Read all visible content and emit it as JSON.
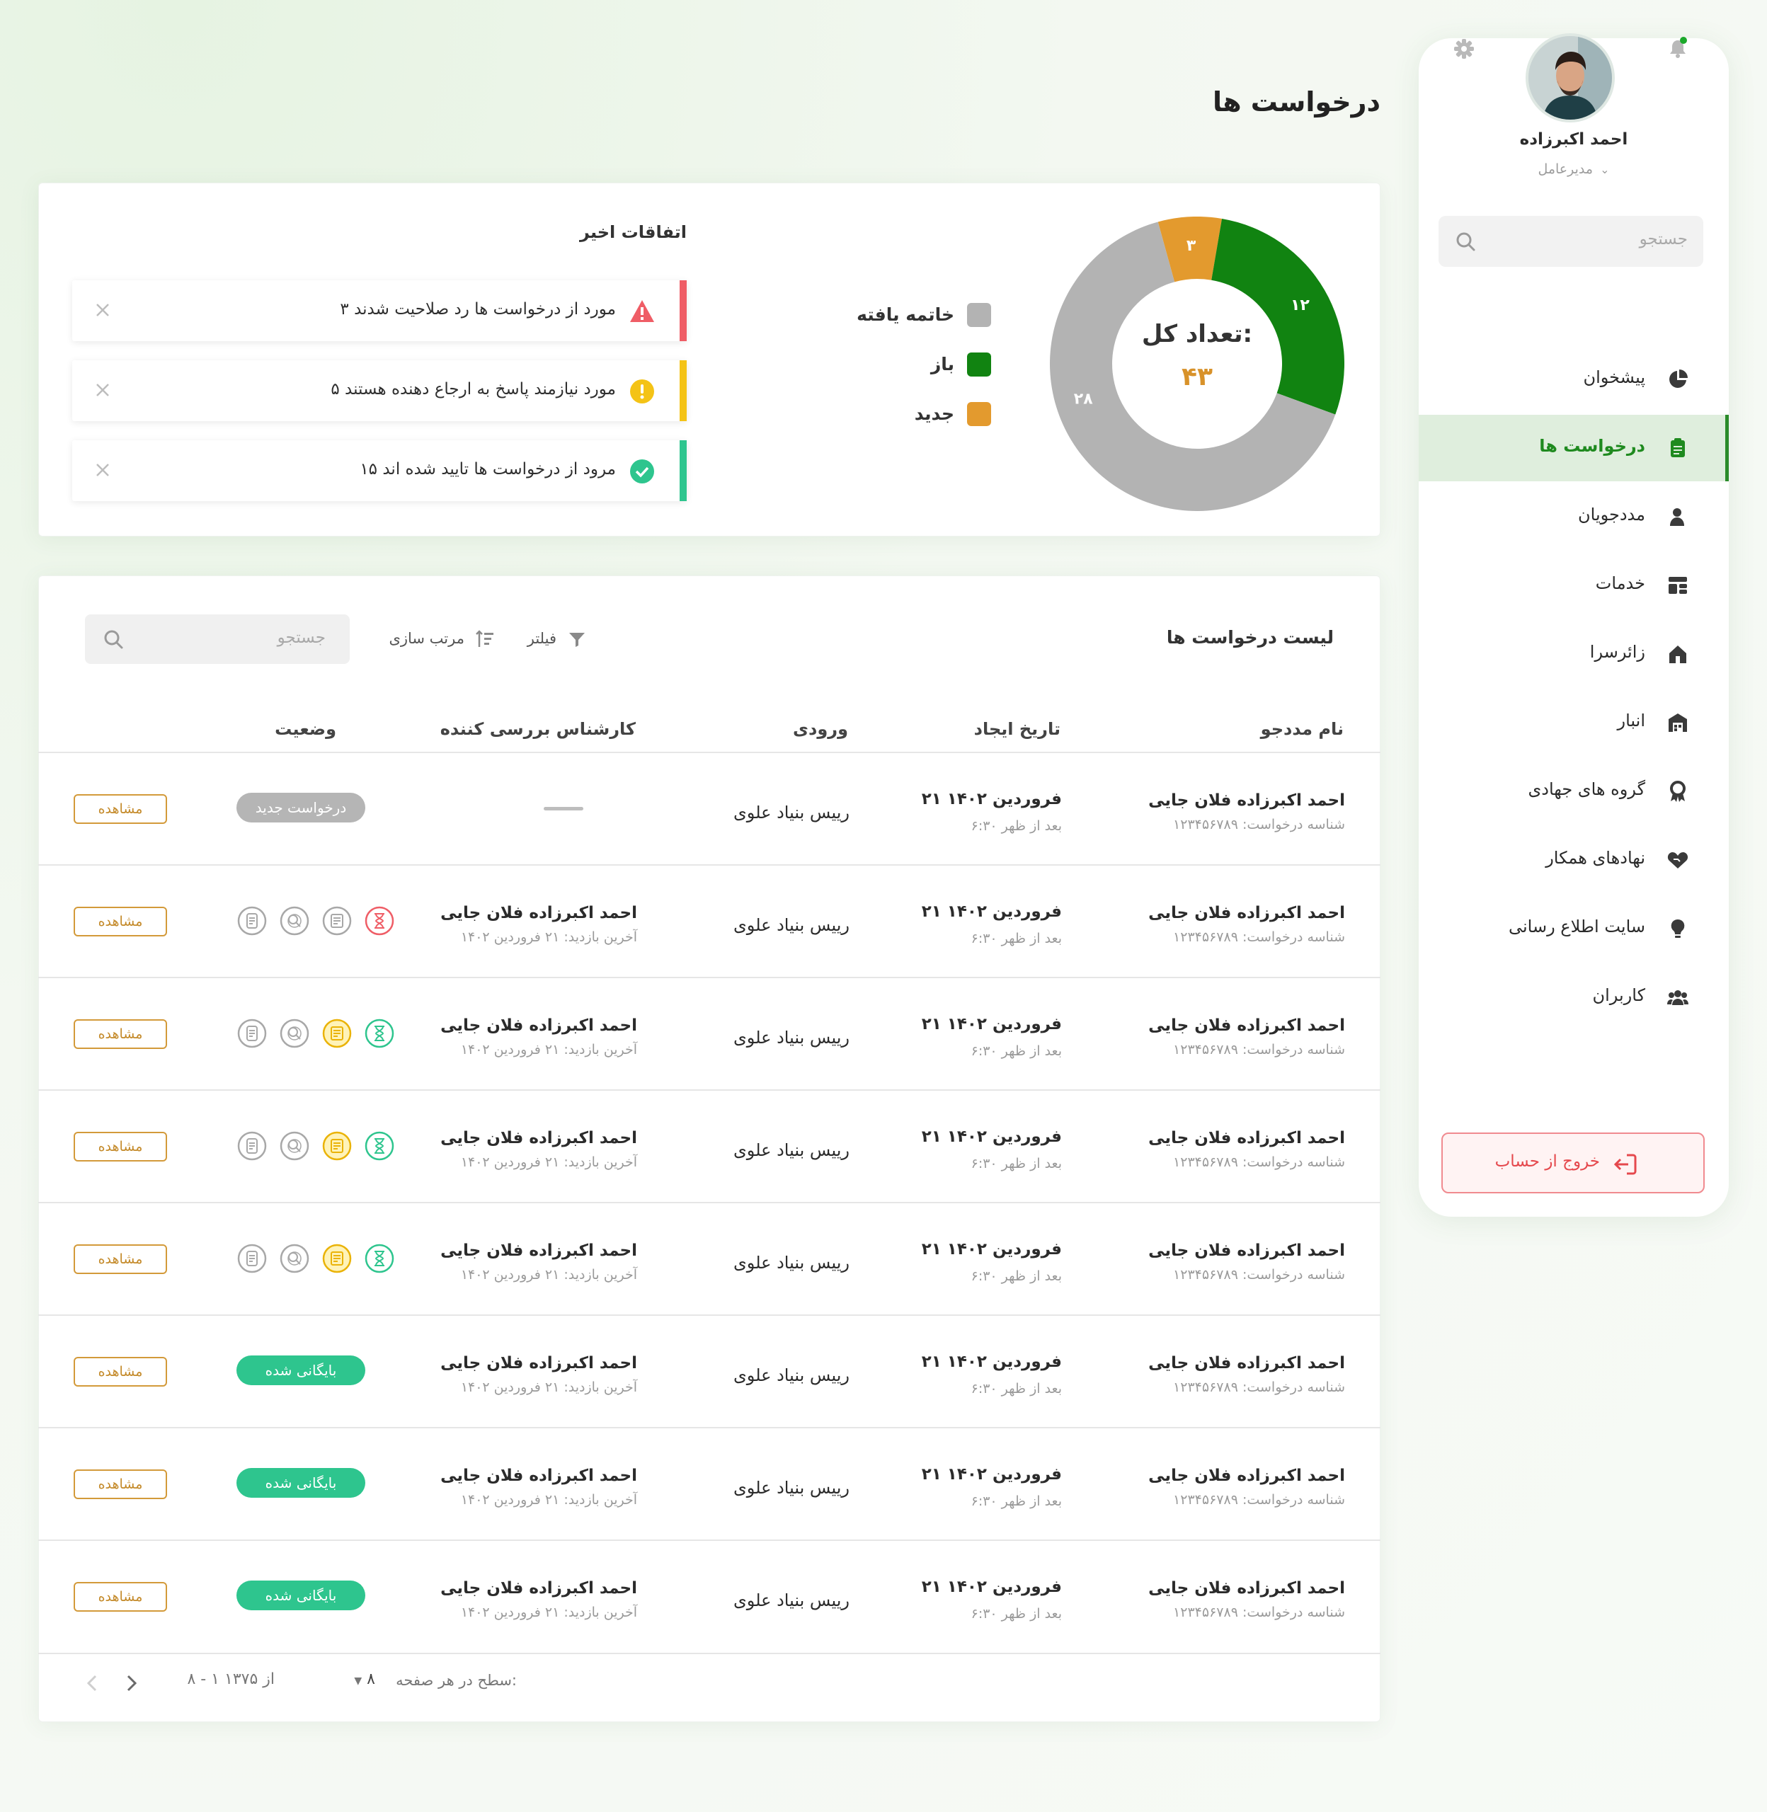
{
  "page": {
    "title": "درخواست ها"
  },
  "user": {
    "name": "احمد اکبرزاده",
    "role": "مدیرعامل"
  },
  "sidebar": {
    "search_placeholder": "جستجو",
    "items": [
      {
        "label": "پیشخوان",
        "icon": "pie-chart-icon"
      },
      {
        "label": "درخواست ها",
        "icon": "clipboard-icon",
        "active": true
      },
      {
        "label": "مددجویان",
        "icon": "user-icon"
      },
      {
        "label": "خدمات",
        "icon": "services-icon"
      },
      {
        "label": "زائرسرا",
        "icon": "house-icon"
      },
      {
        "label": "انبار",
        "icon": "warehouse-icon"
      },
      {
        "label": "گروه های جهادی",
        "icon": "badge-icon"
      },
      {
        "label": "نهادهای همکار",
        "icon": "handshake-icon"
      },
      {
        "label": "سایت اطلاع رسانی",
        "icon": "bulb-icon"
      },
      {
        "label": "کاربران",
        "icon": "users-icon"
      }
    ],
    "logout_label": "خروج از حساب"
  },
  "summary": {
    "total_label": "تعداد کل:",
    "total_value": "۴۳",
    "segments": [
      {
        "label": "خاتمه یافته",
        "value": 28,
        "display": "۲۸",
        "color": "#b3b3b3"
      },
      {
        "label": "باز",
        "value": 12,
        "display": "۱۲",
        "color": "#118311"
      },
      {
        "label": "جدید",
        "value": 3,
        "display": "۳",
        "color": "#e39a2e"
      }
    ],
    "events_title": "اتفاقات اخیر",
    "events": [
      {
        "text": "۳ مورد از درخواست ها رد صلاحیت شدند",
        "kind": "error",
        "color": "#ef5d66"
      },
      {
        "text": "۵ مورد نیازمند پاسخ به ارجاع دهنده هستند",
        "kind": "warning",
        "color": "#f4c316"
      },
      {
        "text": "۱۵ مرود از درخواست ها تایید شده اند",
        "kind": "success",
        "color": "#2ec58e"
      }
    ]
  },
  "table": {
    "title": "لیست درخواست ها",
    "filter_label": "فیلتر",
    "sort_label": "مرتب سازی",
    "search_placeholder": "جستجو",
    "columns": {
      "name": "نام مددجو",
      "date": "تاریخ ایجاد",
      "entry": "ورودی",
      "expert": "کارشناس بررسی کننده",
      "status": "وضعیت"
    },
    "view_label": "مشاهده",
    "rows": [
      {
        "name": "احمد اکبرزاده فلان جایی",
        "request_id": "شناسه درخواست: ۱۲۳۴۵۶۷۸۹",
        "date": "۲۱ فروردین ۱۴۰۲",
        "time": "۶:۳۰ بعد از ظهر",
        "entry": "رییس بنیاد علوی",
        "expert": "",
        "visit": "",
        "status_type": "pill",
        "status_text": "درخواست جدید",
        "status_color": "#b5b5b5",
        "steps": []
      },
      {
        "name": "احمد اکبرزاده فلان جایی",
        "request_id": "شناسه درخواست: ۱۲۳۴۵۶۷۸۹",
        "date": "۲۱ فروردین ۱۴۰۲",
        "time": "۶:۳۰ بعد از ظهر",
        "entry": "رییس بنیاد علوی",
        "expert": "احمد اکبرزاده فلان جایی",
        "visit": "آخرین بازدید: ۲۱ فروردین ۱۴۰۲",
        "status_type": "steps",
        "status_text": "",
        "status_color": "",
        "steps": [
          "red",
          "gray",
          "gray",
          "gray"
        ]
      },
      {
        "name": "احمد اکبرزاده فلان جایی",
        "request_id": "شناسه درخواست: ۱۲۳۴۵۶۷۸۹",
        "date": "۲۱ فروردین ۱۴۰۲",
        "time": "۶:۳۰ بعد از ظهر",
        "entry": "رییس بنیاد علوی",
        "expert": "احمد اکبرزاده فلان جایی",
        "visit": "آخرین بازدید: ۲۱ فروردین ۱۴۰۲",
        "status_type": "steps",
        "status_text": "",
        "status_color": "",
        "steps": [
          "teal",
          "yellow",
          "gray",
          "gray"
        ]
      },
      {
        "name": "احمد اکبرزاده فلان جایی",
        "request_id": "شناسه درخواست: ۱۲۳۴۵۶۷۸۹",
        "date": "۲۱ فروردین ۱۴۰۲",
        "time": "۶:۳۰ بعد از ظهر",
        "entry": "رییس بنیاد علوی",
        "expert": "احمد اکبرزاده فلان جایی",
        "visit": "آخرین بازدید: ۲۱ فروردین ۱۴۰۲",
        "status_type": "steps",
        "status_text": "",
        "status_color": "",
        "steps": [
          "teal",
          "yellow",
          "gray",
          "gray"
        ]
      },
      {
        "name": "احمد اکبرزاده فلان جایی",
        "request_id": "شناسه درخواست: ۱۲۳۴۵۶۷۸۹",
        "date": "۲۱ فروردین ۱۴۰۲",
        "time": "۶:۳۰ بعد از ظهر",
        "entry": "رییس بنیاد علوی",
        "expert": "احمد اکبرزاده فلان جایی",
        "visit": "آخرین بازدید: ۲۱ فروردین ۱۴۰۲",
        "status_type": "steps",
        "status_text": "",
        "status_color": "",
        "steps": [
          "teal",
          "yellow",
          "gray",
          "gray"
        ]
      },
      {
        "name": "احمد اکبرزاده فلان جایی",
        "request_id": "شناسه درخواست: ۱۲۳۴۵۶۷۸۹",
        "date": "۲۱ فروردین ۱۴۰۲",
        "time": "۶:۳۰ بعد از ظهر",
        "entry": "رییس بنیاد علوی",
        "expert": "احمد اکبرزاده فلان جایی",
        "visit": "آخرین بازدید: ۲۱ فروردین ۱۴۰۲",
        "status_type": "pill",
        "status_text": "بایگانی شده",
        "status_color": "#2ec58e",
        "steps": []
      },
      {
        "name": "احمد اکبرزاده فلان جایی",
        "request_id": "شناسه درخواست: ۱۲۳۴۵۶۷۸۹",
        "date": "۲۱ فروردین ۱۴۰۲",
        "time": "۶:۳۰ بعد از ظهر",
        "entry": "رییس بنیاد علوی",
        "expert": "احمد اکبرزاده فلان جایی",
        "visit": "آخرین بازدید: ۲۱ فروردین ۱۴۰۲",
        "status_type": "pill",
        "status_text": "بایگانی شده",
        "status_color": "#2ec58e",
        "steps": []
      },
      {
        "name": "احمد اکبرزاده فلان جایی",
        "request_id": "شناسه درخواست: ۱۲۳۴۵۶۷۸۹",
        "date": "۲۱ فروردین ۱۴۰۲",
        "time": "۶:۳۰ بعد از ظهر",
        "entry": "رییس بنیاد علوی",
        "expert": "احمد اکبرزاده فلان جایی",
        "visit": "آخرین بازدید: ۲۱ فروردین ۱۴۰۲",
        "status_type": "pill",
        "status_text": "بایگانی شده",
        "status_color": "#2ec58e",
        "steps": []
      }
    ],
    "pagination": {
      "rows_label": "سطح در هر صفحه:",
      "rows_value": "۸",
      "range": "۸ - ۱ از ۱۳۷۵"
    }
  },
  "colors": {
    "accent": "#1f8a1f",
    "danger": "#e5484d",
    "view_border": "#d39a3a"
  }
}
